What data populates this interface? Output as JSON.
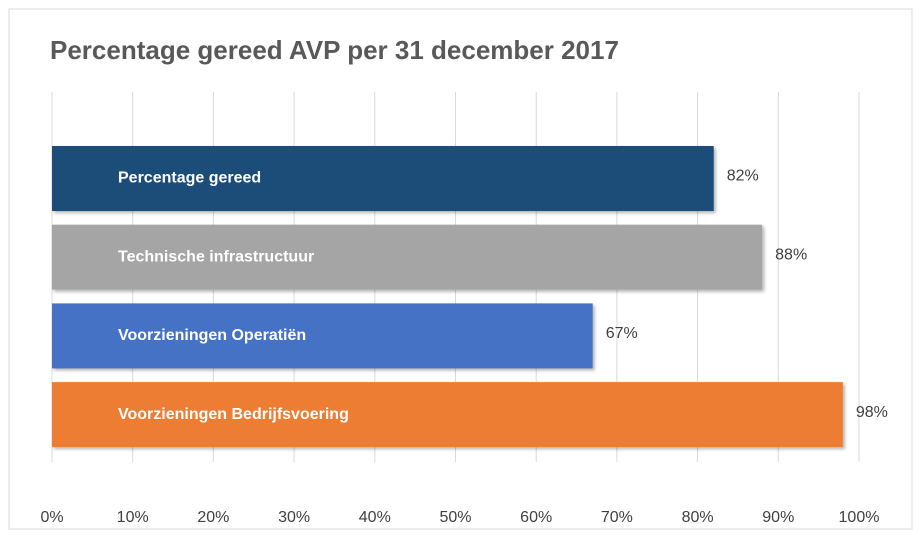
{
  "chart_data": {
    "type": "barh",
    "title": "Percentage gereed AVP per 31 december 2017",
    "categories": [
      "Percentage gereed",
      "Technische infrastructuur",
      "Voorzieningen Operatiën",
      "Voorzieningen Bedrijfsvoering"
    ],
    "values": [
      82,
      88,
      67,
      98
    ],
    "value_labels": [
      "82%",
      "88%",
      "67%",
      "98%"
    ],
    "colors": [
      "#1f4e79",
      "#a5a5a5",
      "#4472c4",
      "#ed7d31"
    ],
    "xlim": [
      0,
      100
    ],
    "xticks": [
      {
        "value": 0,
        "label": "0%"
      },
      {
        "value": 10,
        "label": "10%"
      },
      {
        "value": 20,
        "label": "20%"
      },
      {
        "value": 30,
        "label": "30%"
      },
      {
        "value": 40,
        "label": "40%"
      },
      {
        "value": 50,
        "label": "50%"
      },
      {
        "value": 60,
        "label": "60%"
      },
      {
        "value": 70,
        "label": "70%"
      },
      {
        "value": 80,
        "label": "80%"
      },
      {
        "value": 90,
        "label": "90%"
      },
      {
        "value": 100,
        "label": "100%"
      }
    ],
    "grid": true
  }
}
